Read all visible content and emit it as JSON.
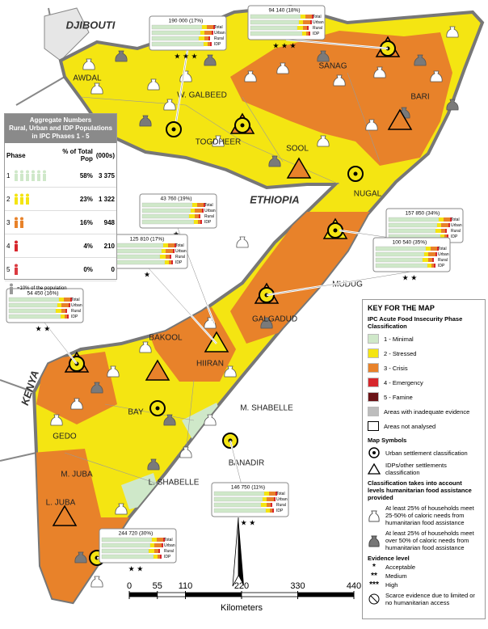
{
  "countries": [
    "DJIBOUTI",
    "ETHIOPIA",
    "KENYA"
  ],
  "regions": [
    "AWDAL",
    "W. GALBEED",
    "TOGDHEER",
    "SANAG",
    "BARI",
    "SOOL",
    "NUGAL",
    "MUDUG",
    "GALGADUD",
    "BAKOOL",
    "HIIRAN",
    "GEDO",
    "BAY",
    "M. SHABELLE",
    "BANADIR",
    "L. SHABELLE",
    "M. JUBA",
    "L. JUBA"
  ],
  "aggregate": {
    "title": "Aggregate Numbers",
    "subtitle": "Rural, Urban and IDP Populations in IPC Phases 1 - 5",
    "headers": [
      "Phase",
      "% of Total Pop",
      "(000s)"
    ],
    "rows": [
      [
        "1",
        "58%",
        "3 375"
      ],
      [
        "2",
        "23%",
        "1 322"
      ],
      [
        "3",
        "16%",
        "948"
      ],
      [
        "4",
        "4%",
        "210"
      ],
      [
        "5",
        "0%",
        "0"
      ]
    ],
    "note": "=10% of the population"
  },
  "callout_labels": [
    "Total",
    "Urban",
    "Rural",
    "IDP"
  ],
  "callouts": [
    {
      "value": "190 000 (17%)",
      "stars": "★ ★ ★"
    },
    {
      "value": "94 140 (18%)",
      "stars": "★ ★ ★"
    },
    {
      "value": "43 760 (19%)",
      "stars": "★"
    },
    {
      "value": "125 810 (17%)",
      "stars": "★"
    },
    {
      "value": "157 850 (34%)",
      "stars": "★ ★"
    },
    {
      "value": "100 540 (35%)",
      "stars": "★ ★"
    },
    {
      "value": "54 450 (16%)",
      "stars": "★ ★"
    },
    {
      "value": "146 750 (11%)",
      "stars": "★ ★"
    },
    {
      "value": "244 720 (30%)",
      "stars": "★ ★"
    }
  ],
  "key": {
    "title": "KEY FOR THE MAP",
    "phase_title": "IPC Acute Food Insecurity Phase Classification",
    "phases": [
      {
        "label": "1 - Minimal",
        "color": "#cfe8c9"
      },
      {
        "label": "2 - Stressed",
        "color": "#f4e512"
      },
      {
        "label": "3 - Crisis",
        "color": "#e8822a"
      },
      {
        "label": "4 - Emergency",
        "color": "#d7262c"
      },
      {
        "label": "5 - Famine",
        "color": "#6a1216"
      },
      {
        "label": "Areas with inadequate evidence",
        "color": "#bdbdbd"
      },
      {
        "label": "Areas not analysed",
        "color": "#ffffff"
      }
    ],
    "symbols_title": "Map Symbols",
    "symbols": [
      "Urban settlement classification",
      "IDPs/other settlements classification"
    ],
    "assistance_title": "Classification takes into account levels humanitarian food assistance provided",
    "assistance": [
      "At least 25% of households meet 25-50% of caloric needs from humanitarian food assistance",
      "At least 25% of households meet over 50% of caloric needs from humanitarian food assistance"
    ],
    "evidence_title": "Evidence level",
    "evidence": [
      {
        "mark": "*",
        "label": "Acceptable"
      },
      {
        "mark": "**",
        "label": "Medium"
      },
      {
        "mark": "***",
        "label": "High"
      }
    ],
    "scarce": "Scarce evidence due to limited or no humanitarian access"
  },
  "scale": {
    "ticks": [
      0,
      55,
      110,
      220,
      330,
      440
    ],
    "unit": "Kilometers"
  }
}
